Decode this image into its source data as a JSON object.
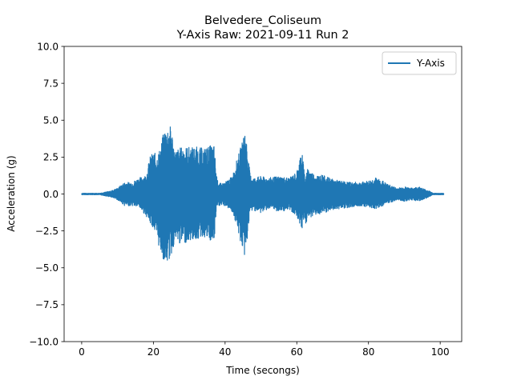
{
  "chart_data": {
    "type": "line",
    "title": "Belvedere_Coliseum",
    "subtitle": "Y-Axis Raw: 2021-09-11 Run 2",
    "xlabel": "Time (secongs)",
    "ylabel": "Acceleration (g)",
    "xlim": [
      -4.9,
      106
    ],
    "ylim": [
      -10.0,
      10.0
    ],
    "xticks": [
      0,
      20,
      40,
      60,
      80,
      100
    ],
    "xtick_labels": [
      "0",
      "20",
      "40",
      "60",
      "80",
      "100"
    ],
    "yticks": [
      -10.0,
      -7.5,
      -5.0,
      -2.5,
      0.0,
      2.5,
      5.0,
      7.5,
      10.0
    ],
    "ytick_labels": [
      "−10.0",
      "−7.5",
      "−5.0",
      "−2.5",
      "0.0",
      "2.5",
      "5.0",
      "7.5",
      "10.0"
    ],
    "grid": false,
    "legend_position": "top-right",
    "series": [
      {
        "name": "Y-Axis",
        "color": "#1f77b4",
        "x_range": [
          0,
          101
        ],
        "envelope": {
          "t": [
            0,
            5,
            8,
            10,
            12,
            14,
            16,
            18,
            19,
            20,
            21,
            22,
            23,
            24,
            25,
            26,
            27,
            28,
            30,
            32,
            34,
            36,
            37,
            37.5,
            38,
            39,
            40,
            42,
            43,
            44,
            45,
            45.5,
            46,
            47,
            48,
            50,
            52,
            55,
            58,
            60,
            61.5,
            62,
            62.5,
            63,
            65,
            67,
            70,
            72,
            75,
            78,
            80,
            82,
            84,
            85,
            86,
            88,
            90,
            92,
            94,
            96,
            97,
            98,
            101
          ],
          "upper": [
            0.05,
            0.05,
            0.2,
            0.4,
            0.8,
            0.8,
            1.1,
            1.3,
            2.5,
            2.9,
            2.6,
            3.2,
            4.4,
            4.6,
            4.6,
            2.9,
            3.1,
            3.2,
            3.2,
            3.2,
            3.1,
            3.3,
            3.3,
            1.5,
            0.8,
            0.7,
            0.8,
            1.2,
            2.1,
            2.9,
            3.7,
            4.5,
            3.6,
            1.3,
            1.1,
            1.2,
            1.1,
            1.2,
            1.1,
            1.5,
            3.2,
            1.7,
            1.0,
            1.8,
            1.3,
            1.3,
            1.0,
            0.9,
            0.8,
            0.8,
            0.9,
            1.1,
            0.9,
            0.7,
            0.6,
            0.4,
            0.5,
            0.4,
            0.5,
            0.3,
            0.2,
            0.05,
            0.05
          ],
          "lower": [
            -0.05,
            -0.05,
            -0.2,
            -0.4,
            -0.8,
            -0.8,
            -0.9,
            -1.5,
            -2.0,
            -2.3,
            -3.2,
            -3.9,
            -4.6,
            -4.7,
            -4.2,
            -3.2,
            -3.4,
            -3.4,
            -3.2,
            -3.1,
            -2.9,
            -3.3,
            -3.3,
            -1.3,
            -0.8,
            -0.8,
            -0.8,
            -1.2,
            -2.0,
            -3.0,
            -3.9,
            -4.3,
            -3.5,
            -1.2,
            -1.1,
            -1.3,
            -1.0,
            -1.2,
            -1.1,
            -1.5,
            -2.4,
            -1.6,
            -2.1,
            -1.7,
            -1.4,
            -1.4,
            -1.1,
            -1.0,
            -0.9,
            -0.8,
            -0.9,
            -1.0,
            -0.8,
            -0.6,
            -0.6,
            -0.4,
            -0.5,
            -0.4,
            -0.5,
            -0.3,
            -0.2,
            -0.05,
            -0.05
          ]
        }
      }
    ]
  }
}
